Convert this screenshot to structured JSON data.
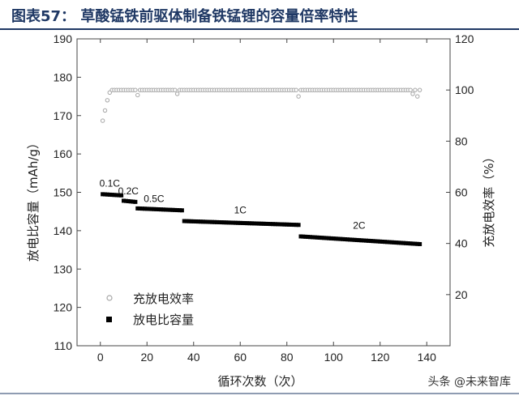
{
  "figure": {
    "title": "图表57：   草酸锰铁前驱体制备铁锰锂的容量倍率特性",
    "watermark": "头条 @未来智库",
    "colors": {
      "title": "#1f3864",
      "rule": "#1f3864",
      "capacity": "#000000",
      "efficiency": "#a6a6a6"
    }
  },
  "chart_data": {
    "type": "scatter",
    "xlabel": "循环次数（次）",
    "ylabel_left": "放电比容量（mAh/g）",
    "ylabel_right": "充放电效率（%）",
    "xlim": [
      -10,
      150
    ],
    "ylim_left": [
      110,
      190
    ],
    "ylim_right": [
      0,
      120
    ],
    "xticks": [
      0,
      20,
      40,
      60,
      80,
      100,
      120,
      140
    ],
    "yticks_left": [
      110,
      120,
      130,
      140,
      150,
      160,
      170,
      180,
      190
    ],
    "yticks_right": [
      20,
      40,
      60,
      80,
      100,
      120
    ],
    "legend": {
      "position": "bottom-left",
      "entries": [
        "充放电效率",
        "放电比容量"
      ]
    },
    "annotations": [
      {
        "text": "0.1C",
        "x": 4,
        "y": 151.5
      },
      {
        "text": "0.2C",
        "x": 12,
        "y": 149.5
      },
      {
        "text": "0.5C",
        "x": 23,
        "y": 147.5
      },
      {
        "text": "1C",
        "x": 60,
        "y": 144.5
      },
      {
        "text": "2C",
        "x": 111,
        "y": 140.5
      }
    ],
    "series": [
      {
        "name": "放电比容量",
        "axis": "left",
        "marker": "square",
        "segments": [
          {
            "x_start": 1,
            "x_end": 9,
            "y_start": 149.5,
            "y_end": 149.2
          },
          {
            "x_start": 10,
            "x_end": 15,
            "y_start": 147.8,
            "y_end": 147.5
          },
          {
            "x_start": 16,
            "x_end": 35,
            "y_start": 145.8,
            "y_end": 145.3
          },
          {
            "x_start": 36,
            "x_end": 85,
            "y_start": 142.5,
            "y_end": 141.5
          },
          {
            "x_start": 86,
            "x_end": 137,
            "y_start": 138.5,
            "y_end": 136.5
          }
        ]
      },
      {
        "name": "充放电效率",
        "axis": "right",
        "marker": "open-circle",
        "values": [
          {
            "x": 1,
            "y": 88
          },
          {
            "x": 2,
            "y": 92
          },
          {
            "x": 3,
            "y": 96
          },
          {
            "x": 4,
            "y": 99
          },
          {
            "x": 16,
            "y": 98
          },
          {
            "x": 33,
            "y": 98.5
          },
          {
            "x": 85,
            "y": 97.5
          },
          {
            "x": 134,
            "y": 98.5
          },
          {
            "x": 136,
            "y": 97.5
          }
        ],
        "default_y": 100,
        "x_range": [
          5,
          137
        ]
      }
    ]
  }
}
